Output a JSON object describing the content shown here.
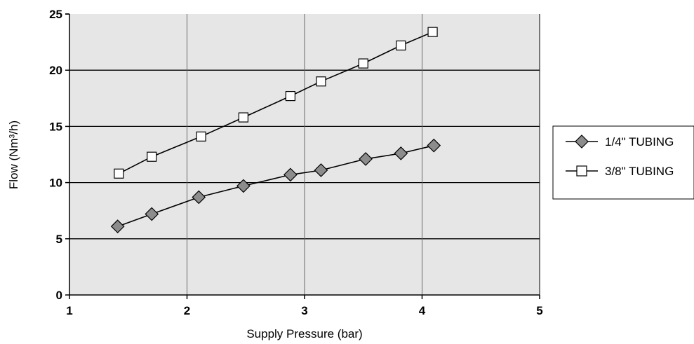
{
  "chart_data": {
    "type": "line",
    "xlabel": "Supply Pressure (bar)",
    "ylabel": "Flow (Nm³/h)",
    "xlim": [
      1,
      5
    ],
    "ylim": [
      0,
      25
    ],
    "xticks": [
      "1",
      "2",
      "3",
      "4",
      "5"
    ],
    "yticks": [
      "0",
      "5",
      "10",
      "15",
      "20",
      "25"
    ],
    "grid": true,
    "legend_position": "right",
    "plot_background": "#e6e6e6",
    "series": [
      {
        "name": "1/4\" TUBING",
        "marker": "diamond",
        "marker_color": "#8c8c8c",
        "x": [
          1.41,
          1.7,
          2.1,
          2.48,
          2.88,
          3.14,
          3.52,
          3.82,
          4.1
        ],
        "y": [
          6.1,
          7.2,
          8.7,
          9.7,
          10.7,
          11.1,
          12.1,
          12.6,
          13.3
        ]
      },
      {
        "name": "3/8\" TUBING",
        "marker": "square",
        "marker_color": "#ffffff",
        "x": [
          1.42,
          1.7,
          2.12,
          2.48,
          2.88,
          3.14,
          3.5,
          3.82,
          4.09
        ],
        "y": [
          10.8,
          12.3,
          14.1,
          15.8,
          17.7,
          19.0,
          20.6,
          22.2,
          23.4
        ]
      }
    ]
  }
}
